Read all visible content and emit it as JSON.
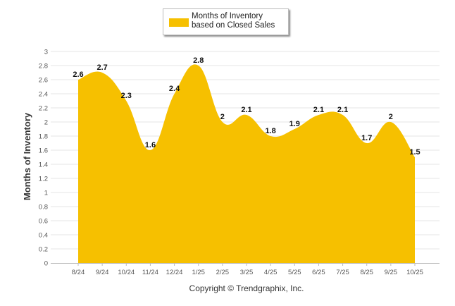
{
  "chart_data": {
    "type": "area",
    "title": "",
    "xlabel": "",
    "ylabel": "Months of Inventory",
    "ylim": [
      0,
      3
    ],
    "ytick_step": 0.2,
    "grid": true,
    "legend_position": "top-center",
    "categories": [
      "8/24",
      "9/24",
      "10/24",
      "11/24",
      "12/24",
      "1/25",
      "2/25",
      "3/25",
      "4/25",
      "5/25",
      "6/25",
      "7/25",
      "8/25",
      "9/25",
      "10/25"
    ],
    "series": [
      {
        "name": "Months of Inventory based on Closed Sales",
        "values": [
          2.6,
          2.7,
          2.3,
          1.6,
          2.4,
          2.8,
          2.0,
          2.1,
          1.8,
          1.9,
          2.1,
          2.1,
          1.7,
          2.0,
          1.5
        ],
        "labels": [
          "2.6",
          "2.7",
          "2.3",
          "1.6",
          "2.4",
          "2.8",
          "2",
          "2.1",
          "1.8",
          "1.9",
          "2.1",
          "2.1",
          "1.7",
          "2",
          "1.5"
        ],
        "color": "#f6c000"
      }
    ]
  },
  "legend": {
    "label": "Months of Inventory based on Closed Sales"
  },
  "footer": {
    "copyright": "Copyright © Trendgraphix, Inc."
  },
  "colors": {
    "area": "#f6c000",
    "grid": "#e6e6e6",
    "axis_text": "#555555",
    "label_text": "#111111"
  }
}
